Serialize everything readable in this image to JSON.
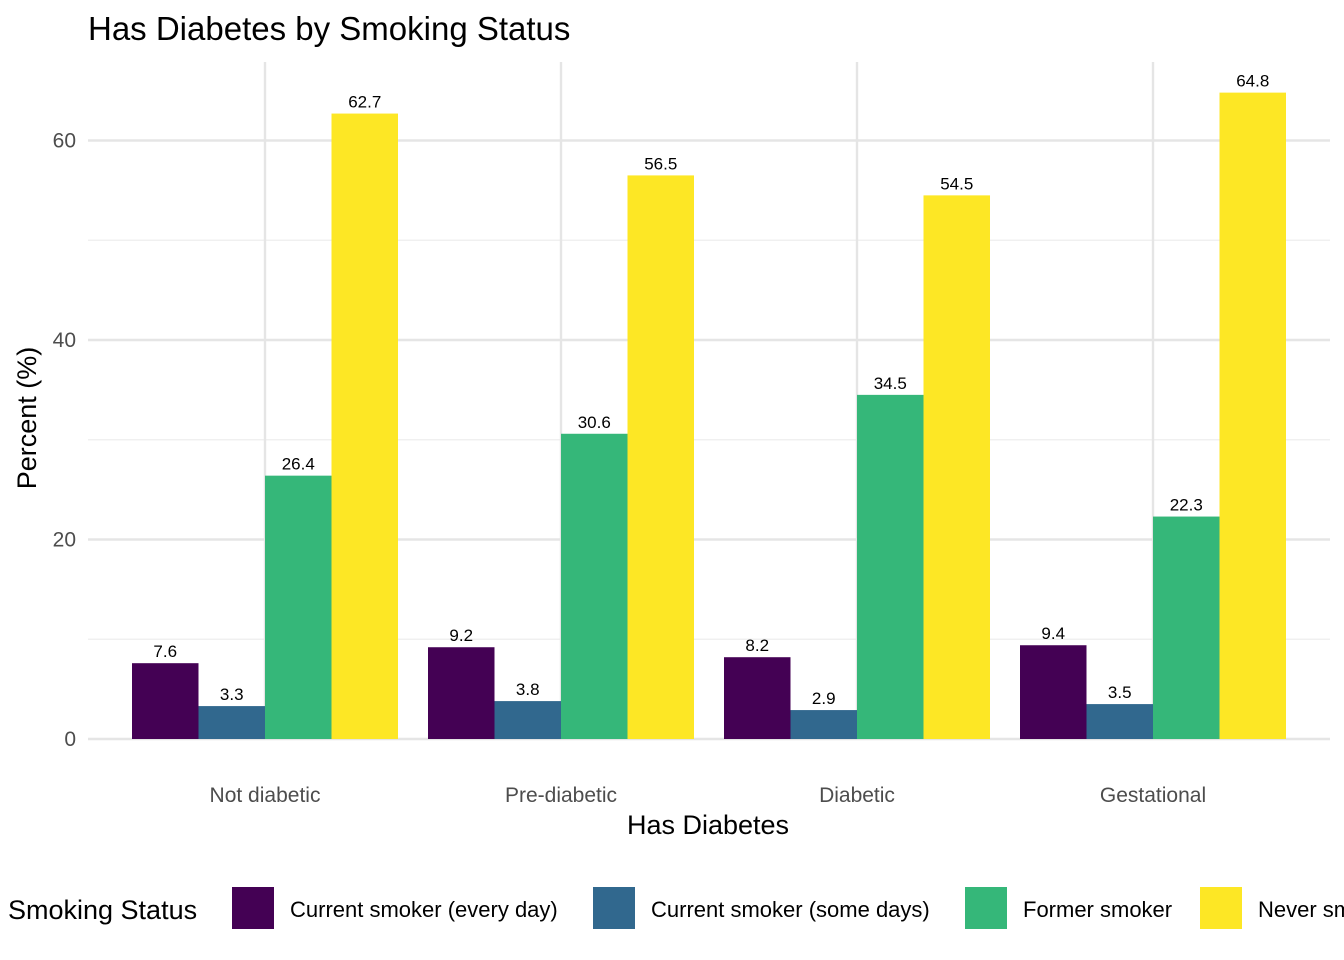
{
  "chart_data": {
    "type": "bar",
    "title": "Has Diabetes by Smoking Status",
    "xlabel": "Has Diabetes",
    "ylabel": "Percent (%)",
    "categories": [
      "Not diabetic",
      "Pre-diabetic",
      "Diabetic",
      "Gestational"
    ],
    "series": [
      {
        "name": "Current smoker (every day)",
        "color": "#440154",
        "values": [
          7.6,
          9.2,
          8.2,
          9.4
        ]
      },
      {
        "name": "Current smoker (some days)",
        "color": "#31688E",
        "values": [
          3.3,
          3.8,
          2.9,
          3.5
        ]
      },
      {
        "name": "Former smoker",
        "color": "#35B779",
        "values": [
          26.4,
          30.6,
          34.5,
          22.3
        ]
      },
      {
        "name": "Never smoker",
        "color": "#FDE725",
        "values": [
          62.7,
          56.5,
          54.5,
          64.8
        ]
      }
    ],
    "ylim": [
      0,
      68
    ],
    "yticks": [
      0,
      20,
      40,
      60
    ],
    "grid": true,
    "legend": {
      "title": "Smoking Status",
      "position": "bottom"
    }
  }
}
